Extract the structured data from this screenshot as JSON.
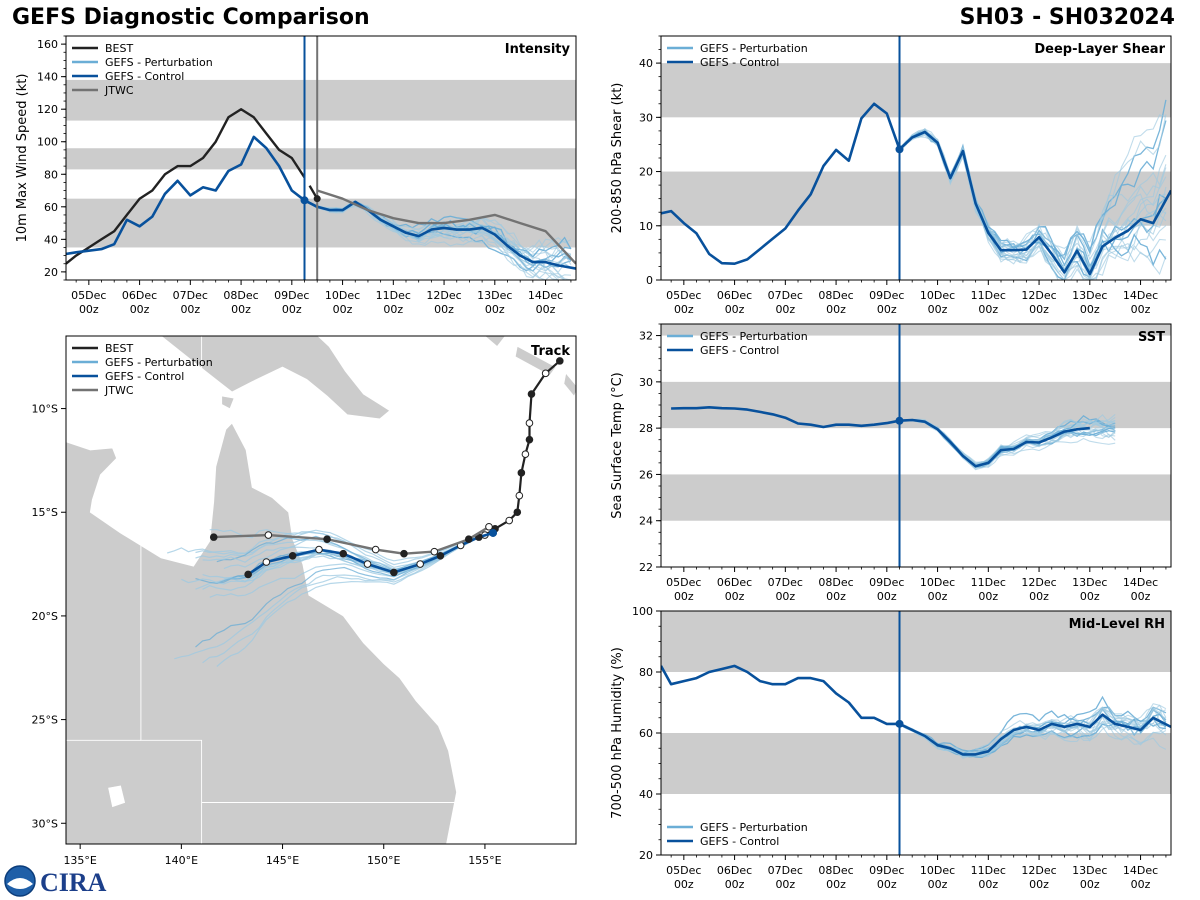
{
  "header": {
    "title_left": "GEFS Diagnostic Comparison",
    "title_right": "SH03 - SH032024"
  },
  "logo": {
    "text": "CIRA",
    "icon": "noaa-logo-icon"
  },
  "colors": {
    "best": "#222222",
    "perturbation": "#6baed6",
    "perturbation_thin": "#9ecae1",
    "control": "#08519c",
    "jtwc": "#737373",
    "band": "#cccccc",
    "land": "#cccccc"
  },
  "time_axis": {
    "tick_labels": [
      "05Dec\n00z",
      "06Dec\n00z",
      "07Dec\n00z",
      "08Dec\n00z",
      "09Dec\n00z",
      "10Dec\n00z",
      "11Dec\n00z",
      "12Dec\n00z",
      "13Dec\n00z",
      "14Dec\n00z"
    ],
    "tick_days": [
      0,
      1,
      2,
      3,
      4,
      5,
      6,
      7,
      8,
      9
    ],
    "range_days": [
      -0.45,
      9.6
    ],
    "init_day": 4.25,
    "jtwc_init_day": 4.5
  },
  "chart_data": [
    {
      "id": "intensity",
      "type": "line",
      "title": "Intensity",
      "ylabel": "10m Max Wind Speed (kt)",
      "ylim": [
        15,
        165
      ],
      "yticks": [
        20,
        40,
        60,
        80,
        100,
        120,
        140,
        160
      ],
      "bands": [
        [
          35,
          65
        ],
        [
          83,
          96
        ],
        [
          113,
          138
        ]
      ],
      "legend": [
        "BEST",
        "GEFS - Perturbation",
        "GEFS - Control",
        "JTWC"
      ],
      "series": [
        {
          "name": "BEST",
          "x": [
            -0.45,
            -0.25,
            0,
            0.25,
            0.5,
            0.75,
            1,
            1.25,
            1.5,
            1.75,
            2,
            2.25,
            2.5,
            2.75,
            3,
            3.25,
            3.5,
            3.75,
            4,
            4.25
          ],
          "values": [
            25,
            30,
            35,
            40,
            45,
            55,
            65,
            70,
            80,
            85,
            85,
            90,
            100,
            115,
            120,
            115,
            105,
            95,
            90,
            78
          ]
        },
        {
          "name": "BEST-post",
          "x": [
            4.35,
            4.5
          ],
          "values": [
            73,
            65
          ]
        },
        {
          "name": "GEFS - Control",
          "x": [
            -0.45,
            -0.25,
            0,
            0.25,
            0.5,
            0.75,
            1,
            1.25,
            1.5,
            1.75,
            2,
            2.25,
            2.5,
            2.75,
            3,
            3.25,
            3.5,
            3.75,
            4,
            4.25,
            4.5,
            4.75,
            5,
            5.25,
            5.5,
            5.75,
            6,
            6.25,
            6.5,
            6.75,
            7,
            7.25,
            7.5,
            7.75,
            8,
            8.25,
            8.5,
            8.75,
            9,
            9.25,
            9.6
          ],
          "values": [
            31,
            32,
            33,
            34,
            37,
            52,
            48,
            54,
            68,
            76,
            67,
            72,
            70,
            82,
            86,
            103,
            96,
            85,
            70,
            64,
            60,
            58,
            58,
            63,
            58,
            52,
            48,
            44,
            42,
            46,
            47,
            46,
            46,
            47,
            43,
            36,
            30,
            26,
            26,
            24,
            22
          ]
        },
        {
          "name": "JTWC",
          "x": [
            4.5,
            5,
            5.5,
            6,
            6.5,
            7,
            7.5,
            8,
            8.5,
            9,
            9.6
          ],
          "values": [
            70,
            65,
            58,
            53,
            50,
            50,
            52,
            55,
            50,
            45,
            25
          ]
        }
      ]
    },
    {
      "id": "shear",
      "type": "line",
      "title": "Deep-Layer Shear",
      "ylabel": "200-850 hPa Shear (kt)",
      "ylim": [
        0,
        45
      ],
      "yticks": [
        0,
        10,
        20,
        30,
        40
      ],
      "bands": [
        [
          10,
          20
        ],
        [
          30,
          40
        ]
      ],
      "legend": [
        "GEFS - Perturbation",
        "GEFS - Control"
      ],
      "series": [
        {
          "name": "GEFS - Control",
          "x": [
            -0.45,
            -0.25,
            0,
            0.25,
            0.5,
            0.75,
            1,
            1.25,
            1.5,
            1.75,
            2,
            2.25,
            2.5,
            2.75,
            3,
            3.25,
            3.5,
            3.75,
            4,
            4.25,
            4.5,
            4.75,
            5,
            5.25,
            5.5,
            5.75,
            6,
            6.25,
            6.5,
            6.75,
            7,
            7.25,
            7.5,
            7.75,
            8,
            8.25,
            8.5,
            8.75,
            9,
            9.25,
            9.6
          ],
          "values": [
            12.3,
            12.7,
            10.5,
            8.6,
            4.8,
            3.1,
            3.0,
            3.8,
            5.7,
            7.6,
            9.5,
            12.8,
            15.8,
            21,
            24,
            22,
            29.8,
            32.5,
            30.7,
            24.1,
            26.3,
            27.3,
            25.3,
            18.8,
            23.8,
            14.1,
            8.7,
            5.5,
            5.5,
            5.6,
            7.9,
            4.8,
            1.4,
            5.4,
            1.1,
            6.2,
            7.8,
            9.1,
            11.2,
            10.5,
            16.5
          ]
        }
      ]
    },
    {
      "id": "sst",
      "type": "line",
      "title": "SST",
      "ylabel": "Sea Surface Temp (°C)",
      "ylim": [
        22,
        32.5
      ],
      "yticks": [
        22,
        24,
        26,
        28,
        30,
        32
      ],
      "bands": [
        [
          24,
          26
        ],
        [
          28,
          30
        ],
        [
          32,
          32.5
        ]
      ],
      "legend": [
        "GEFS - Perturbation",
        "GEFS - Control"
      ],
      "series": [
        {
          "name": "GEFS - Control",
          "x": [
            -0.25,
            0,
            0.25,
            0.5,
            0.75,
            1,
            1.25,
            1.5,
            1.75,
            2,
            2.25,
            2.5,
            2.75,
            3,
            3.25,
            3.5,
            3.75,
            4,
            4.25,
            4.5,
            4.75,
            5,
            5.25,
            5.5,
            5.75,
            6,
            6.25,
            6.5,
            6.75,
            7,
            7.25,
            7.5,
            7.75,
            8
          ],
          "values": [
            28.85,
            28.86,
            28.86,
            28.9,
            28.86,
            28.85,
            28.8,
            28.7,
            28.6,
            28.45,
            28.2,
            28.15,
            28.05,
            28.15,
            28.15,
            28.1,
            28.15,
            28.22,
            28.32,
            28.35,
            28.28,
            27.95,
            27.4,
            26.8,
            26.35,
            26.5,
            27.05,
            27.1,
            27.4,
            27.38,
            27.6,
            27.85,
            27.95,
            28.0
          ]
        }
      ]
    },
    {
      "id": "rh",
      "type": "line",
      "title": "Mid-Level RH",
      "ylabel": "700-500 hPa Humidity (%)",
      "ylim": [
        20,
        100
      ],
      "yticks": [
        20,
        40,
        60,
        80,
        100
      ],
      "bands": [
        [
          40,
          60
        ],
        [
          80,
          100
        ]
      ],
      "legend": [
        "GEFS - Perturbation",
        "GEFS - Control"
      ],
      "series": [
        {
          "name": "GEFS - Control",
          "x": [
            -0.45,
            -0.25,
            0,
            0.25,
            0.5,
            0.75,
            1,
            1.25,
            1.5,
            1.75,
            2,
            2.25,
            2.5,
            2.75,
            3,
            3.25,
            3.5,
            3.75,
            4,
            4.25,
            4.5,
            4.75,
            5,
            5.25,
            5.5,
            5.75,
            6,
            6.25,
            6.5,
            6.75,
            7,
            7.25,
            7.5,
            7.75,
            8,
            8.25,
            8.5,
            8.75,
            9,
            9.25,
            9.6
          ],
          "values": [
            82,
            76,
            77,
            78,
            80,
            81,
            82,
            80,
            77,
            76,
            76,
            78,
            78,
            77,
            73,
            70,
            65,
            65,
            63,
            63,
            61,
            59,
            56,
            55,
            53,
            53,
            54,
            58,
            61,
            62,
            61,
            63,
            62,
            63,
            62,
            66,
            63,
            62,
            61,
            65,
            62
          ]
        }
      ]
    },
    {
      "id": "track",
      "type": "scatter",
      "title": "Track",
      "legend": [
        "BEST",
        "GEFS - Perturbation",
        "GEFS - Control",
        "JTWC"
      ],
      "lon_range": [
        134.3,
        159.5
      ],
      "lat_range": [
        -31,
        -6.5
      ],
      "lon_ticks": [
        135,
        140,
        145,
        150,
        155
      ],
      "lon_labels": [
        "135°E",
        "140°E",
        "145°E",
        "150°E",
        "155°E"
      ],
      "lat_ticks": [
        -10,
        -15,
        -20,
        -25,
        -30
      ],
      "lat_labels": [
        "10°S",
        "15°S",
        "20°S",
        "25°S",
        "30°S"
      ],
      "series": [
        {
          "name": "BEST",
          "lon": [
            158.7,
            158,
            157.3,
            157.2,
            157.2,
            157,
            156.8,
            156.7,
            156.6,
            156.2,
            155.5,
            155
          ],
          "lat": [
            -7.7,
            -8.3,
            -9.3,
            -10.7,
            -11.5,
            -12.2,
            -13.1,
            -14.2,
            -15,
            -15.4,
            -15.8,
            -16.1
          ]
        },
        {
          "name": "GEFS - Control",
          "lon": [
            155.4,
            154.7,
            153.8,
            152.8,
            151.8,
            150.5,
            149.2,
            148.0,
            146.8,
            145.5,
            144.2,
            143.3
          ],
          "lat": [
            -16.0,
            -16.2,
            -16.6,
            -17.1,
            -17.5,
            -17.9,
            -17.5,
            -17.0,
            -16.8,
            -17.1,
            -17.4,
            -18.0
          ]
        },
        {
          "name": "JTWC",
          "lon": [
            155.2,
            154.2,
            152.5,
            151.0,
            149.6,
            147.2,
            144.3,
            141.6
          ],
          "lat": [
            -15.7,
            -16.3,
            -16.9,
            -17.0,
            -16.8,
            -16.3,
            -16.1,
            -16.2
          ]
        }
      ]
    }
  ]
}
